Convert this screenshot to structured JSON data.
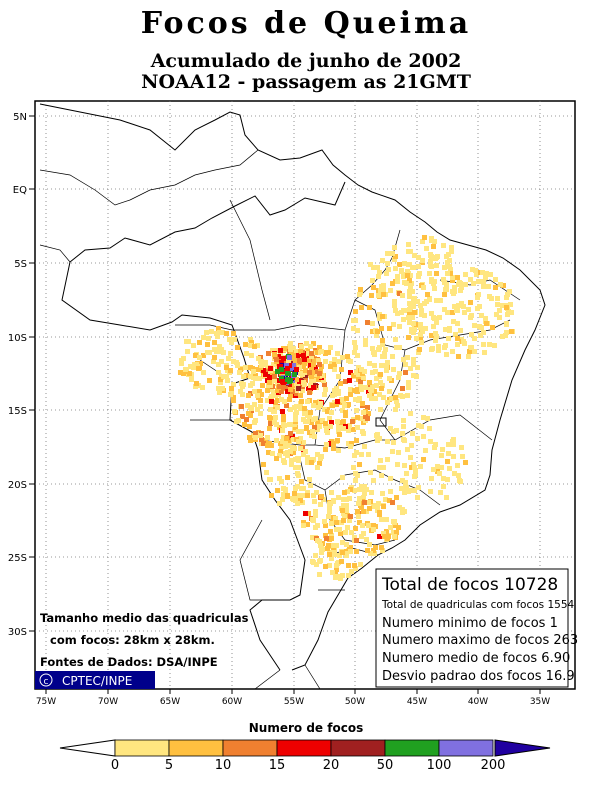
{
  "title": "Focos de Queima",
  "subtitle1": "Acumulado de junho de 2002",
  "subtitle2": "NOAA12 - passagem as 21GMT",
  "lat_ticks": [
    "5N",
    "EQ",
    "5S",
    "10S",
    "15S",
    "20S",
    "25S",
    "30S"
  ],
  "lon_ticks": [
    "75W",
    "70W",
    "65W",
    "60W",
    "55W",
    "50W",
    "45W",
    "40W",
    "35W"
  ],
  "info_left": {
    "line1": "Tamanho medio das quadriculas",
    "line2": "com focos: 28km x 28km.",
    "line3": "Fontes de Dados: DSA/INPE"
  },
  "logo_text": "CPTEC/INPE",
  "stats": {
    "total": "Total de focos 10728",
    "quadriculas": "Total de quadriculas com focos 1554",
    "minimo": "Numero minimo de focos 1",
    "maximo": "Numero maximo de focos 263",
    "medio": "Numero medio de focos 6.90",
    "desvio": "Desvio padrao dos focos 16.9"
  },
  "legend": {
    "title": "Numero de focos",
    "labels": [
      "0",
      "5",
      "10",
      "15",
      "20",
      "50",
      "100",
      "200"
    ],
    "colors": [
      "#ffe680",
      "#ffc040",
      "#f08030",
      "#ee0000",
      "#a02020",
      "#20a020",
      "#8070e0",
      "#2000a0"
    ]
  }
}
